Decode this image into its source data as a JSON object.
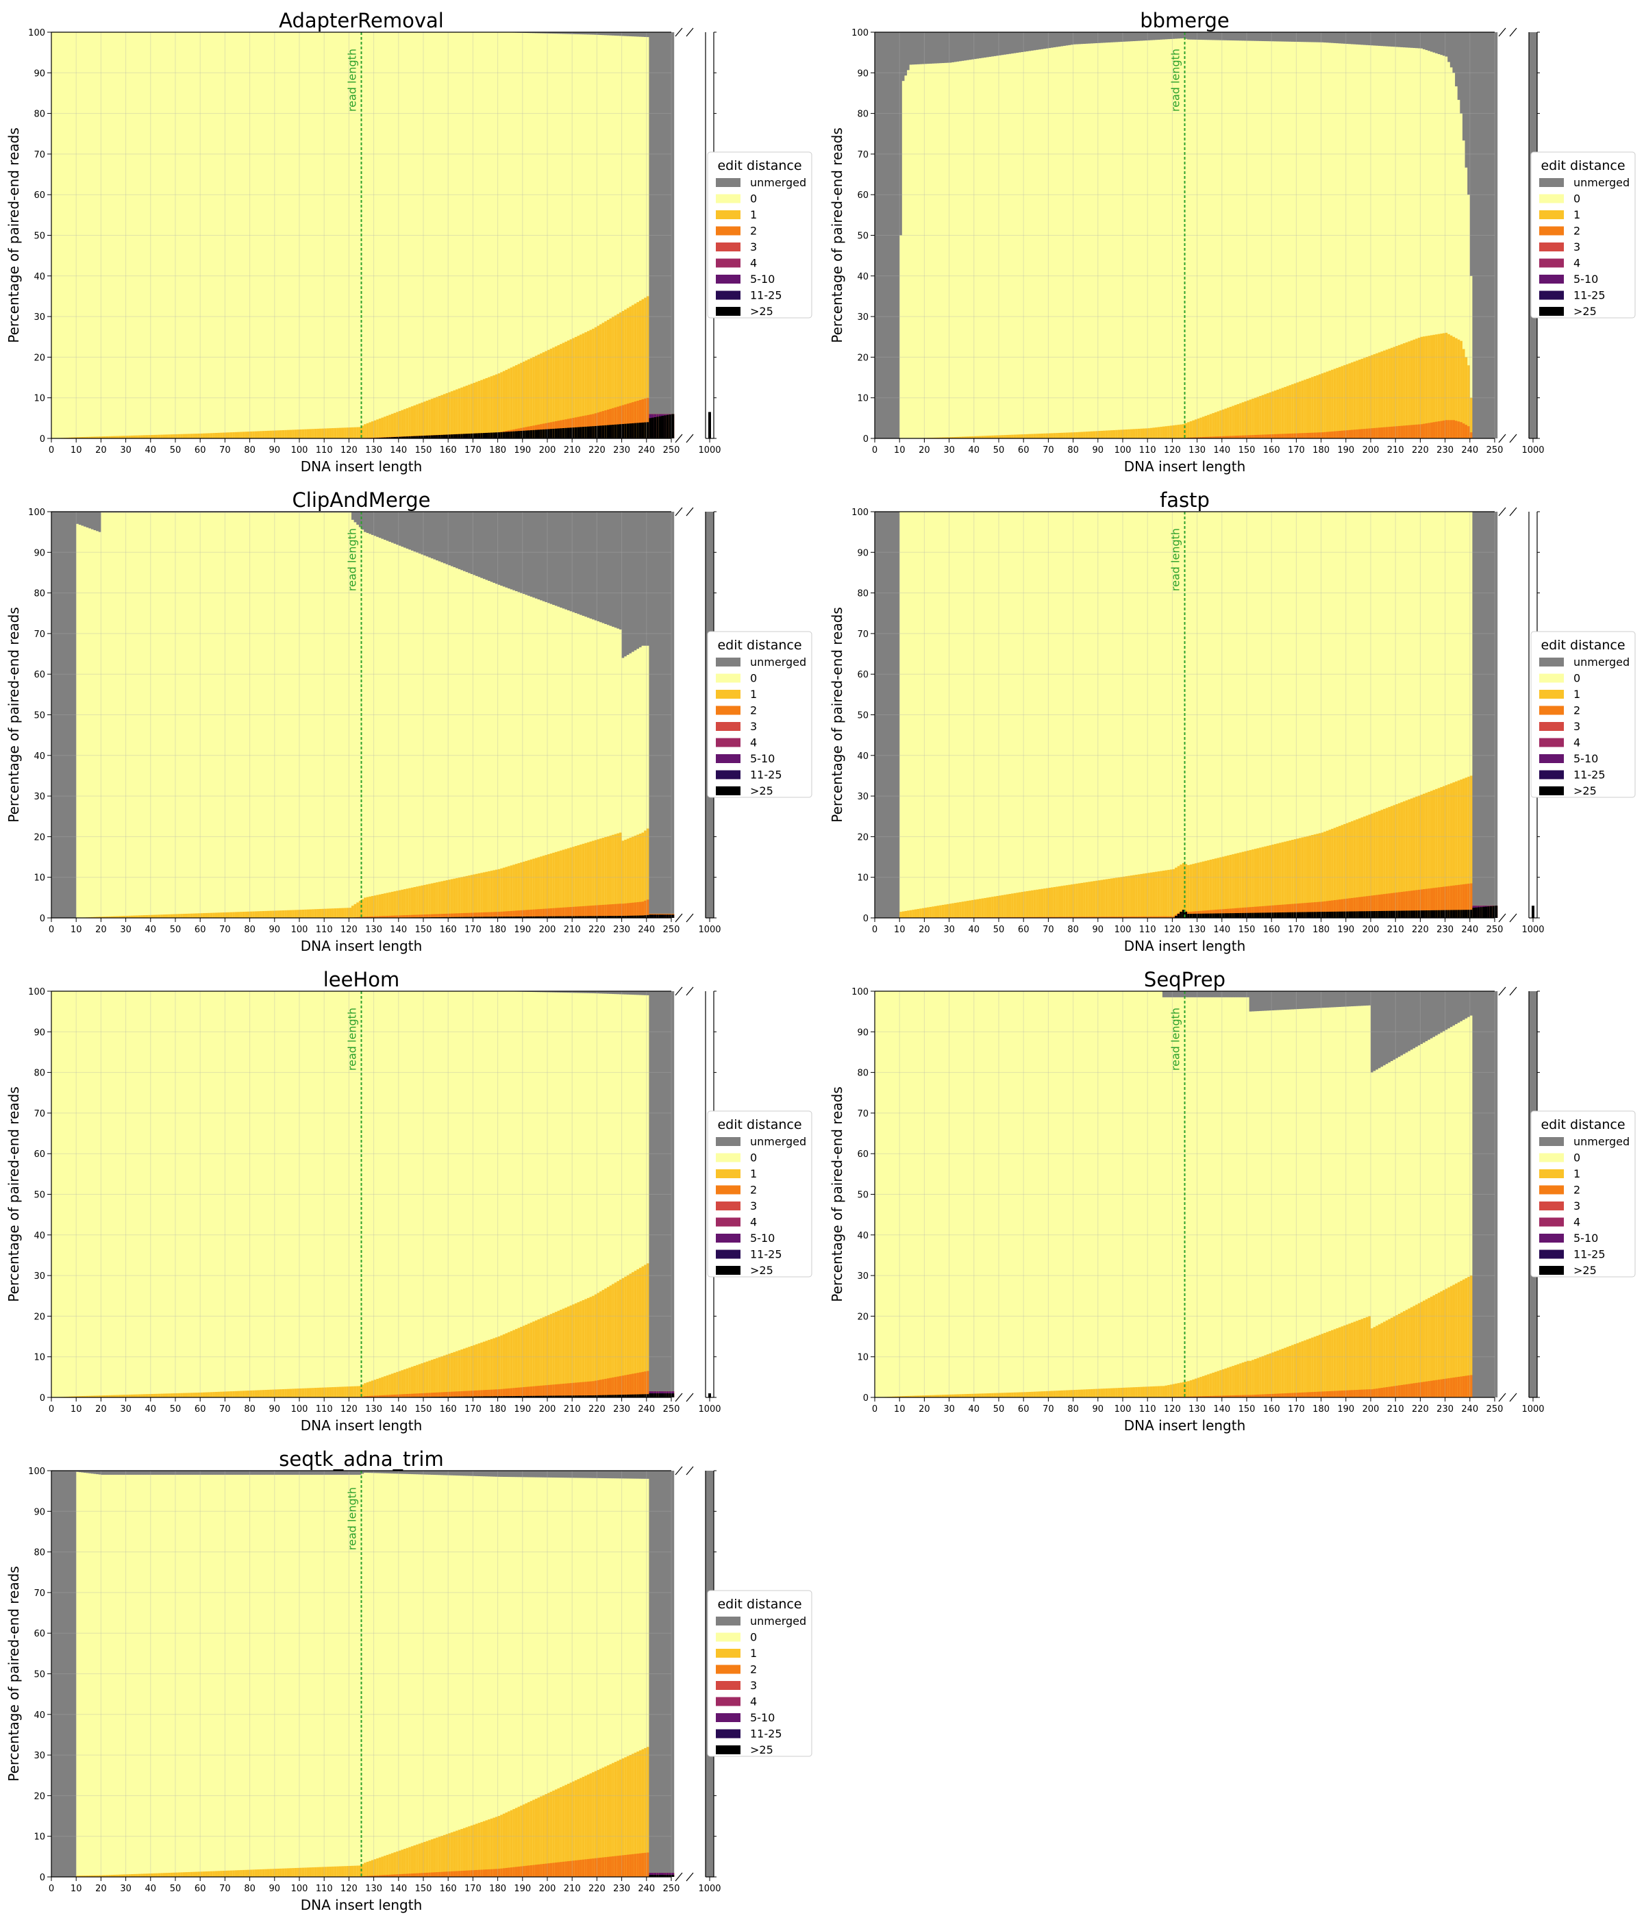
{
  "figure": {
    "xlabel": "DNA insert length",
    "ylabel": "Percentage of paired-end reads",
    "x_ticks": [
      0,
      10,
      20,
      30,
      40,
      50,
      60,
      70,
      80,
      90,
      100,
      110,
      120,
      130,
      140,
      150,
      160,
      170,
      180,
      190,
      200,
      210,
      220,
      230,
      240,
      250
    ],
    "y_ticks": [
      0,
      10,
      20,
      30,
      40,
      50,
      60,
      70,
      80,
      90,
      100
    ],
    "overflow_tick": "1000",
    "read_length_label": "read length",
    "read_length_x": 125,
    "legend": {
      "title": "edit distance",
      "entries": [
        {
          "label": "unmerged",
          "color": "#808080"
        },
        {
          "label": "0",
          "color": "#fcffa4"
        },
        {
          "label": "1",
          "color": "#fac228"
        },
        {
          "label": "2",
          "color": "#f57d15"
        },
        {
          "label": "3",
          "color": "#d44842"
        },
        {
          "label": "4",
          "color": "#9f2a63"
        },
        {
          "label": "5-10",
          "color": "#65156e"
        },
        {
          "label": "11-25",
          "color": "#280b53"
        },
        {
          "label": ">25",
          "color": "#000000"
        }
      ]
    }
  },
  "chart_data": [
    {
      "type": "area",
      "title": "AdapterRemoval",
      "xlim": [
        0,
        250
      ],
      "ylim": [
        0,
        100
      ],
      "points": [
        {
          "x": 0,
          "unmerged": 0,
          "e1": 0,
          "e2": 0,
          "e3": 0,
          "high": 0
        },
        {
          "x": 10,
          "unmerged": 0,
          "e1": 0.3,
          "e2": 0,
          "e3": 0,
          "high": 0
        },
        {
          "x": 60,
          "unmerged": 0,
          "e1": 1.2,
          "e2": 0,
          "e3": 0,
          "high": 0
        },
        {
          "x": 124,
          "unmerged": 0,
          "e1": 2.8,
          "e2": 0,
          "e3": 0,
          "high": 0
        },
        {
          "x": 126,
          "unmerged": 0,
          "e1": 3.5,
          "e2": 0.1,
          "e3": 0,
          "high": 0
        },
        {
          "x": 180,
          "unmerged": 0,
          "e1": 16,
          "e2": 1.5,
          "e3": 0,
          "high": 1.5
        },
        {
          "x": 218,
          "unmerged": 0.6,
          "e1": 27,
          "e2": 6,
          "e3": 0,
          "high": 3
        },
        {
          "x": 240,
          "unmerged": 1.2,
          "e1": 35,
          "e2": 10,
          "e3": 0,
          "high": 4
        },
        {
          "x": 241,
          "unmerged": 94,
          "e1": 6,
          "e2": 6,
          "e3": 6,
          "high": 5
        },
        {
          "x": 250,
          "unmerged": 94,
          "e1": 6,
          "e2": 6,
          "e3": 6,
          "high": 6
        }
      ],
      "overflow": {
        "unmerged": 0,
        "high": 6.5
      }
    },
    {
      "type": "area",
      "title": "bbmerge",
      "xlim": [
        0,
        250
      ],
      "ylim": [
        0,
        100
      ],
      "points": [
        {
          "x": 0,
          "unmerged": 100,
          "e1": 0,
          "e2": 0,
          "e3": 0,
          "high": 0
        },
        {
          "x": 9,
          "unmerged": 100,
          "e1": 0,
          "e2": 0,
          "e3": 0,
          "high": 0
        },
        {
          "x": 10,
          "unmerged": 50,
          "e1": 0,
          "e2": 0,
          "e3": 0,
          "high": 0
        },
        {
          "x": 11,
          "unmerged": 12,
          "e1": 0,
          "e2": 0,
          "e3": 0,
          "high": 0
        },
        {
          "x": 14,
          "unmerged": 8,
          "e1": 0,
          "e2": 0,
          "e3": 0,
          "high": 0
        },
        {
          "x": 30,
          "unmerged": 7.5,
          "e1": 0.3,
          "e2": 0,
          "e3": 0,
          "high": 0
        },
        {
          "x": 80,
          "unmerged": 3,
          "e1": 1.5,
          "e2": 0,
          "e3": 0,
          "high": 0
        },
        {
          "x": 110,
          "unmerged": 2,
          "e1": 2.5,
          "e2": 0,
          "e3": 0,
          "high": 0
        },
        {
          "x": 124,
          "unmerged": 1.5,
          "e1": 3.5,
          "e2": 0,
          "e3": 0,
          "high": 0
        },
        {
          "x": 126,
          "unmerged": 1.8,
          "e1": 4,
          "e2": 0.2,
          "e3": 0,
          "high": 0
        },
        {
          "x": 180,
          "unmerged": 2.5,
          "e1": 16,
          "e2": 1.5,
          "e3": 0,
          "high": 0
        },
        {
          "x": 220,
          "unmerged": 4,
          "e1": 25,
          "e2": 3.5,
          "e3": 0,
          "high": 0
        },
        {
          "x": 230,
          "unmerged": 6,
          "e1": 26,
          "e2": 4.5,
          "e3": 0,
          "high": 0
        },
        {
          "x": 233,
          "unmerged": 10,
          "e1": 25,
          "e2": 4.5,
          "e3": 0,
          "high": 0
        },
        {
          "x": 236,
          "unmerged": 20,
          "e1": 24,
          "e2": 4,
          "e3": 0,
          "high": 0
        },
        {
          "x": 239,
          "unmerged": 40,
          "e1": 18,
          "e2": 3,
          "e3": 0,
          "high": 0
        },
        {
          "x": 240,
          "unmerged": 60,
          "e1": 10,
          "e2": 1.5,
          "e3": 0,
          "high": 0
        },
        {
          "x": 241,
          "unmerged": 100,
          "e1": 0,
          "e2": 0,
          "e3": 0,
          "high": 0
        },
        {
          "x": 250,
          "unmerged": 100,
          "e1": 0,
          "e2": 0,
          "e3": 0,
          "high": 0
        }
      ],
      "overflow": {
        "unmerged": 100,
        "high": 0
      }
    },
    {
      "type": "area",
      "title": "ClipAndMerge",
      "xlim": [
        0,
        250
      ],
      "ylim": [
        0,
        100
      ],
      "points": [
        {
          "x": 0,
          "unmerged": 100,
          "e1": 0,
          "e2": 0,
          "e3": 0,
          "high": 0
        },
        {
          "x": 9,
          "unmerged": 100,
          "e1": 0,
          "e2": 0,
          "e3": 0,
          "high": 0
        },
        {
          "x": 10,
          "unmerged": 3,
          "e1": 0,
          "e2": 0,
          "e3": 0,
          "high": 0
        },
        {
          "x": 19,
          "unmerged": 5,
          "e1": 0.3,
          "e2": 0,
          "e3": 0,
          "high": 0
        },
        {
          "x": 20,
          "unmerged": 0.2,
          "e1": 0.3,
          "e2": 0,
          "e3": 0,
          "high": 0
        },
        {
          "x": 100,
          "unmerged": 0.2,
          "e1": 2,
          "e2": 0.1,
          "e3": 0,
          "high": 0
        },
        {
          "x": 120,
          "unmerged": 0.2,
          "e1": 2.5,
          "e2": 0.1,
          "e3": 0,
          "high": 0
        },
        {
          "x": 121,
          "unmerged": 2,
          "e1": 3,
          "e2": 0.1,
          "e3": 0,
          "high": 0
        },
        {
          "x": 126,
          "unmerged": 5,
          "e1": 5,
          "e2": 0.3,
          "e3": 0,
          "high": 0
        },
        {
          "x": 180,
          "unmerged": 18,
          "e1": 12,
          "e2": 1.5,
          "e3": 0,
          "high": 0.3
        },
        {
          "x": 229,
          "unmerged": 29,
          "e1": 21,
          "e2": 3.5,
          "e3": 0,
          "high": 0.5
        },
        {
          "x": 230,
          "unmerged": 36,
          "e1": 19,
          "e2": 3.5,
          "e3": 0,
          "high": 0.5
        },
        {
          "x": 238,
          "unmerged": 33,
          "e1": 21,
          "e2": 4,
          "e3": 0,
          "high": 0.6
        },
        {
          "x": 240,
          "unmerged": 33,
          "e1": 22,
          "e2": 4.5,
          "e3": 0,
          "high": 0.7
        },
        {
          "x": 241,
          "unmerged": 99,
          "e1": 1,
          "e2": 1,
          "e3": 0.8,
          "high": 0.8
        },
        {
          "x": 250,
          "unmerged": 99,
          "e1": 1,
          "e2": 1,
          "e3": 0.8,
          "high": 0.8
        }
      ],
      "overflow": {
        "unmerged": 100,
        "high": 0
      }
    },
    {
      "type": "area",
      "title": "fastp",
      "xlim": [
        0,
        250
      ],
      "ylim": [
        0,
        100
      ],
      "points": [
        {
          "x": 0,
          "unmerged": 100,
          "e1": 0,
          "e2": 0,
          "e3": 0,
          "high": 0
        },
        {
          "x": 9,
          "unmerged": 100,
          "e1": 0,
          "e2": 0,
          "e3": 0,
          "high": 0
        },
        {
          "x": 10,
          "unmerged": 0,
          "e1": 1.5,
          "e2": 0.1,
          "e3": 0,
          "high": 0
        },
        {
          "x": 60,
          "unmerged": 0,
          "e1": 6.5,
          "e2": 0.2,
          "e3": 0,
          "high": 0
        },
        {
          "x": 120,
          "unmerged": 0,
          "e1": 12,
          "e2": 0.4,
          "e3": 0,
          "high": 0
        },
        {
          "x": 124,
          "unmerged": 0,
          "e1": 13.5,
          "e2": 2,
          "e3": 0,
          "high": 2
        },
        {
          "x": 126,
          "unmerged": 0,
          "e1": 13,
          "e2": 1.5,
          "e3": 0,
          "high": 1
        },
        {
          "x": 180,
          "unmerged": 0,
          "e1": 21,
          "e2": 4,
          "e3": 0,
          "high": 1.5
        },
        {
          "x": 240,
          "unmerged": 0,
          "e1": 35,
          "e2": 8.5,
          "e3": 0,
          "high": 2
        },
        {
          "x": 241,
          "unmerged": 97,
          "e1": 3,
          "e2": 3,
          "e3": 3,
          "high": 2.5
        },
        {
          "x": 250,
          "unmerged": 97,
          "e1": 3,
          "e2": 3,
          "e3": 3,
          "high": 3
        }
      ],
      "overflow": {
        "unmerged": 0,
        "high": 3
      }
    },
    {
      "type": "area",
      "title": "leeHom",
      "xlim": [
        0,
        250
      ],
      "ylim": [
        0,
        100
      ],
      "points": [
        {
          "x": 0,
          "unmerged": 0,
          "e1": 0,
          "e2": 0,
          "e3": 0,
          "high": 0
        },
        {
          "x": 10,
          "unmerged": 0,
          "e1": 0.3,
          "e2": 0,
          "e3": 0,
          "high": 0
        },
        {
          "x": 60,
          "unmerged": 0,
          "e1": 1.2,
          "e2": 0,
          "e3": 0,
          "high": 0
        },
        {
          "x": 124,
          "unmerged": 0,
          "e1": 2.8,
          "e2": 0.1,
          "e3": 0,
          "high": 0
        },
        {
          "x": 126,
          "unmerged": 0,
          "e1": 3.5,
          "e2": 0.3,
          "e3": 0,
          "high": 0
        },
        {
          "x": 180,
          "unmerged": 0,
          "e1": 15,
          "e2": 2,
          "e3": 0,
          "high": 0.3
        },
        {
          "x": 218,
          "unmerged": 0.5,
          "e1": 25,
          "e2": 4,
          "e3": 0,
          "high": 0.5
        },
        {
          "x": 240,
          "unmerged": 1,
          "e1": 33,
          "e2": 6.5,
          "e3": 0,
          "high": 0.8
        },
        {
          "x": 241,
          "unmerged": 98.5,
          "e1": 1.5,
          "e2": 1.5,
          "e3": 1.5,
          "high": 1
        },
        {
          "x": 250,
          "unmerged": 98.5,
          "e1": 1.5,
          "e2": 1.5,
          "e3": 1.5,
          "high": 1
        }
      ],
      "overflow": {
        "unmerged": 0,
        "high": 1
      }
    },
    {
      "type": "area",
      "title": "SeqPrep",
      "xlim": [
        0,
        250
      ],
      "ylim": [
        0,
        100
      ],
      "points": [
        {
          "x": 0,
          "unmerged": 0,
          "e1": 0,
          "e2": 0,
          "e3": 0,
          "high": 0
        },
        {
          "x": 10,
          "unmerged": 0,
          "e1": 0.3,
          "e2": 0,
          "e3": 0,
          "high": 0
        },
        {
          "x": 60,
          "unmerged": 0,
          "e1": 1.3,
          "e2": 0,
          "e3": 0,
          "high": 0
        },
        {
          "x": 115,
          "unmerged": 0,
          "e1": 2.8,
          "e2": 0.1,
          "e3": 0,
          "high": 0
        },
        {
          "x": 116,
          "unmerged": 1.5,
          "e1": 2.8,
          "e2": 0.1,
          "e3": 0,
          "high": 0
        },
        {
          "x": 126,
          "unmerged": 1.5,
          "e1": 4,
          "e2": 0.2,
          "e3": 0,
          "high": 0
        },
        {
          "x": 150,
          "unmerged": 1.5,
          "e1": 9,
          "e2": 0.6,
          "e3": 0,
          "high": 0
        },
        {
          "x": 151,
          "unmerged": 5,
          "e1": 9,
          "e2": 0.6,
          "e3": 0,
          "high": 0
        },
        {
          "x": 199,
          "unmerged": 3.5,
          "e1": 20,
          "e2": 2,
          "e3": 0,
          "high": 0
        },
        {
          "x": 200,
          "unmerged": 20,
          "e1": 17,
          "e2": 2,
          "e3": 0,
          "high": 0
        },
        {
          "x": 240,
          "unmerged": 6,
          "e1": 30,
          "e2": 5.5,
          "e3": 0,
          "high": 0
        },
        {
          "x": 241,
          "unmerged": 100,
          "e1": 0,
          "e2": 0,
          "e3": 0,
          "high": 0
        },
        {
          "x": 250,
          "unmerged": 100,
          "e1": 0,
          "e2": 0,
          "e3": 0,
          "high": 0
        }
      ],
      "overflow": {
        "unmerged": 100,
        "high": 0
      }
    },
    {
      "type": "area",
      "title": "seqtk_adna_trim",
      "xlim": [
        0,
        250
      ],
      "ylim": [
        0,
        100
      ],
      "points": [
        {
          "x": 0,
          "unmerged": 100,
          "e1": 0,
          "e2": 0,
          "e3": 0,
          "high": 0
        },
        {
          "x": 9,
          "unmerged": 100,
          "e1": 0,
          "e2": 0,
          "e3": 0,
          "high": 0
        },
        {
          "x": 10,
          "unmerged": 0.3,
          "e1": 0.3,
          "e2": 0,
          "e3": 0,
          "high": 0
        },
        {
          "x": 20,
          "unmerged": 1,
          "e1": 0.4,
          "e2": 0,
          "e3": 0,
          "high": 0
        },
        {
          "x": 60,
          "unmerged": 1,
          "e1": 1.3,
          "e2": 0,
          "e3": 0,
          "high": 0
        },
        {
          "x": 124,
          "unmerged": 1,
          "e1": 2.8,
          "e2": 0.1,
          "e3": 0,
          "high": 0
        },
        {
          "x": 126,
          "unmerged": 0.5,
          "e1": 3.5,
          "e2": 0.2,
          "e3": 0,
          "high": 0
        },
        {
          "x": 180,
          "unmerged": 1.5,
          "e1": 15,
          "e2": 2,
          "e3": 0,
          "high": 0
        },
        {
          "x": 240,
          "unmerged": 2,
          "e1": 32,
          "e2": 6,
          "e3": 0,
          "high": 0
        },
        {
          "x": 241,
          "unmerged": 99,
          "e1": 1,
          "e2": 1,
          "e3": 1,
          "high": 0.5
        },
        {
          "x": 250,
          "unmerged": 99,
          "e1": 1,
          "e2": 1,
          "e3": 1,
          "high": 0.5
        }
      ],
      "overflow": {
        "unmerged": 100,
        "high": 0
      }
    }
  ]
}
